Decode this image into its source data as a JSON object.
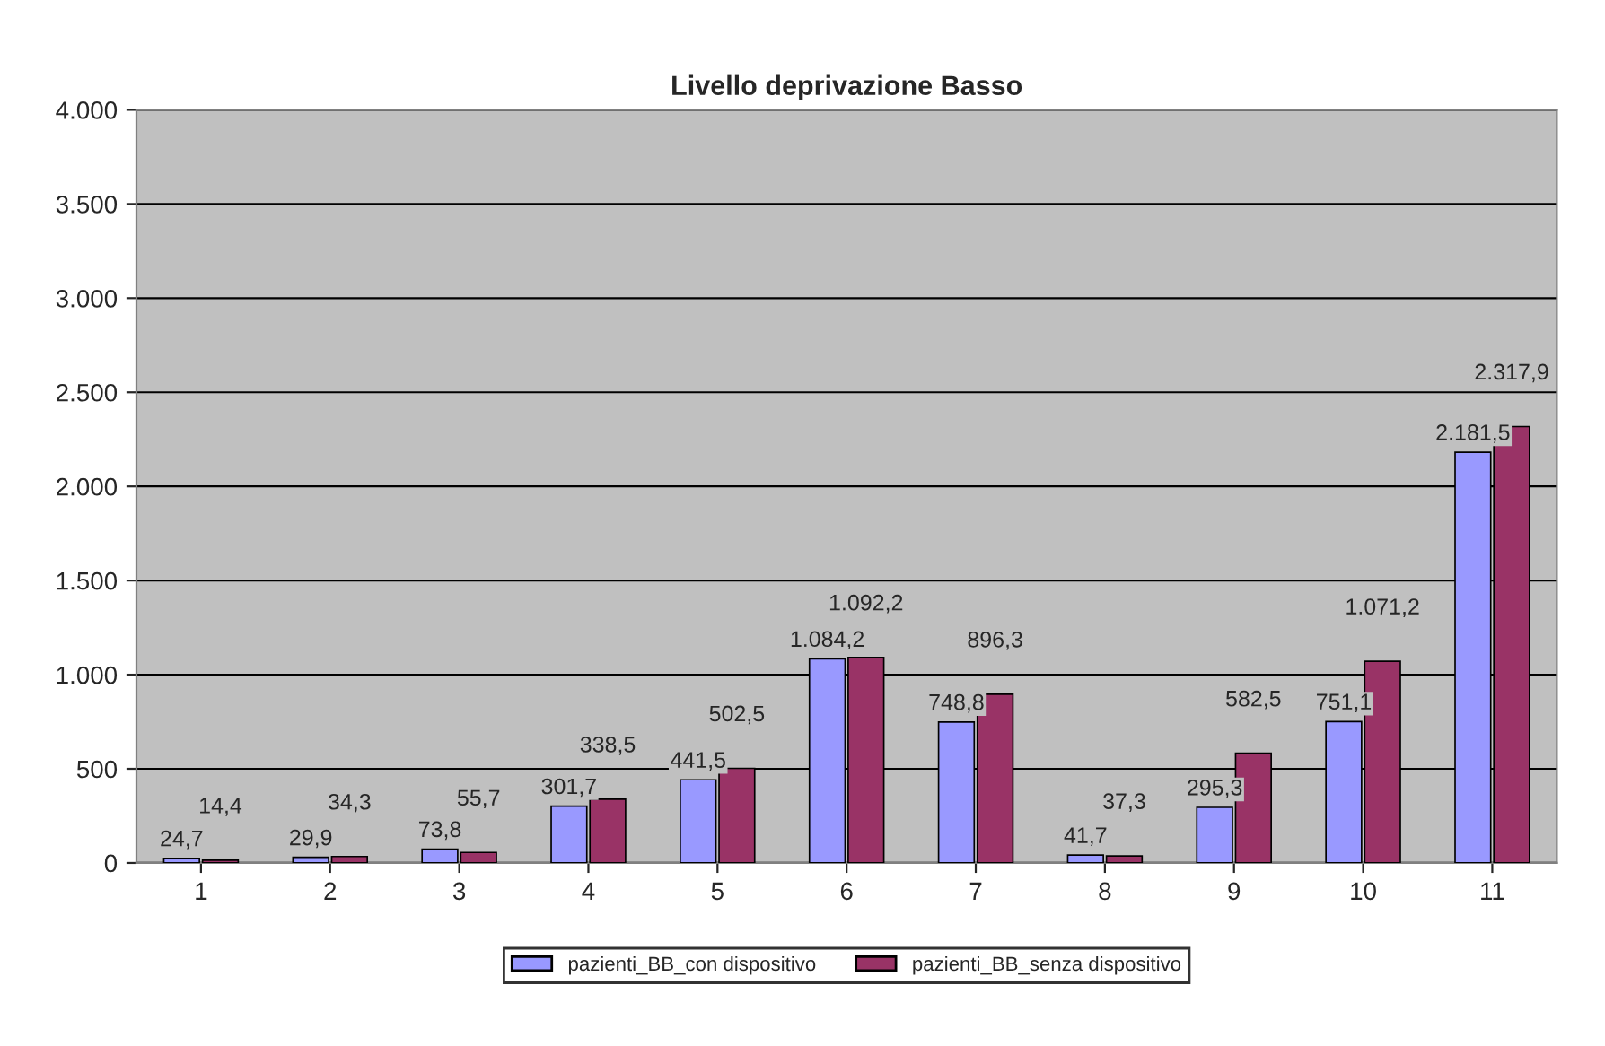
{
  "chart_data": {
    "type": "bar",
    "title": "Livello deprivazione Basso",
    "categories": [
      "1",
      "2",
      "3",
      "4",
      "5",
      "6",
      "7",
      "8",
      "9",
      "10",
      "11"
    ],
    "series": [
      {
        "name": "pazienti_BB_con dispositivo",
        "color": "#9999ff",
        "values": [
          24.7,
          29.9,
          73.8,
          301.7,
          441.5,
          1084.2,
          748.8,
          41.7,
          295.3,
          751.1,
          2181.5
        ],
        "value_labels": [
          "24,7",
          "29,9",
          "73,8",
          "301,7",
          "441,5",
          "1.084,2",
          "748,8",
          "41,7",
          "295,3",
          "751,1",
          "2.181,5"
        ]
      },
      {
        "name": "pazienti_BB_senza dispositivo",
        "color": "#993366",
        "values": [
          14.4,
          34.3,
          55.7,
          338.5,
          502.5,
          1092.2,
          896.3,
          37.3,
          582.5,
          1071.2,
          2317.9
        ],
        "value_labels": [
          "14,4",
          "34,3",
          "55,7",
          "338,5",
          "502,5",
          "1.092,2",
          "896,3",
          "37,3",
          "582,5",
          "1.071,2",
          "2.317,9"
        ]
      }
    ],
    "ylim": [
      0,
      4000
    ],
    "yticks": [
      {
        "value": 0,
        "label": "0"
      },
      {
        "value": 500,
        "label": "500"
      },
      {
        "value": 1000,
        "label": "1.000"
      },
      {
        "value": 1500,
        "label": "1.500"
      },
      {
        "value": 2000,
        "label": "2.000"
      },
      {
        "value": 2500,
        "label": "2.500"
      },
      {
        "value": 3000,
        "label": "3.000"
      },
      {
        "value": 3500,
        "label": "3.500"
      },
      {
        "value": 4000,
        "label": "4.000"
      }
    ],
    "grid": "y",
    "legend": "bottom"
  }
}
